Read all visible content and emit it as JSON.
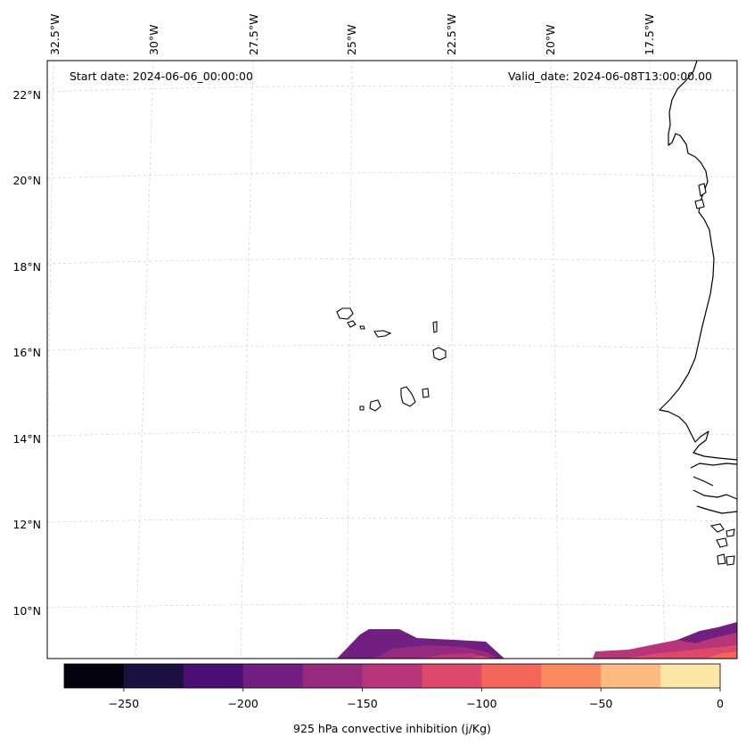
{
  "map": {
    "start_date_text": "Start date: 2024-06-06_00:00:00",
    "valid_date_text": "Valid_date: 2024-06-08T13:00:00.00",
    "lon_labels": [
      "32.5°W",
      "30°W",
      "27.5°W",
      "25°W",
      "22.5°W",
      "20°W",
      "17.5°W"
    ],
    "lat_labels": [
      "22°N",
      "20°N",
      "18°N",
      "16°N",
      "14°N",
      "12°N",
      "10°N"
    ],
    "region_features": [
      "Cape Verde islands",
      "West African coast"
    ]
  },
  "colorbar": {
    "label": "925 hPa convective inhibition (j/Kg)",
    "tick_labels": [
      "−250",
      "−200",
      "−150",
      "−100",
      "−50",
      "0"
    ],
    "min": -275,
    "max": 0,
    "step": 25,
    "colors": [
      "#05030f",
      "#1c1040",
      "#4b0f74",
      "#711f80",
      "#962a7f",
      "#b9357a",
      "#dd496b",
      "#f2665c",
      "#fc8a61",
      "#fdbb82",
      "#fde7a8"
    ]
  }
}
